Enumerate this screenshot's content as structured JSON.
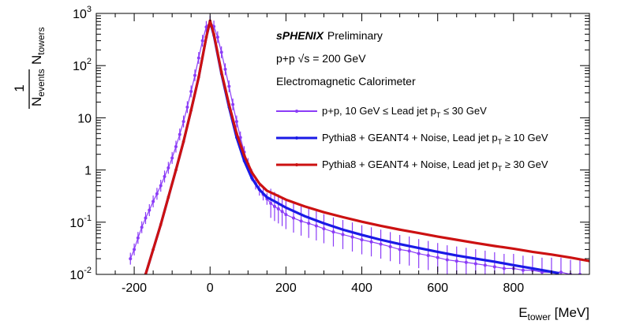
{
  "chart_data": {
    "type": "scatter",
    "xlim": [
      -300,
      1000
    ],
    "ylim": [
      0.01,
      1000
    ],
    "y_scale": "log",
    "grid": false,
    "legend_position": "top-right",
    "xlabel": {
      "main": "E",
      "sub": "tower",
      "unit": " [MeV]"
    },
    "ylabel": {
      "num": "1",
      "den_main": "N",
      "den_sub": "events",
      "main": "N",
      "sub": "towers"
    },
    "x_ticks": [
      "-200",
      "0",
      "200",
      "400",
      "600",
      "800"
    ],
    "x_tick_values": [
      -200,
      0,
      200,
      400,
      600,
      800
    ],
    "y_ticks": [
      {
        "value": 0.01,
        "base": "10",
        "exp": "-2"
      },
      {
        "value": 0.1,
        "base": "10",
        "exp": "-1"
      },
      {
        "value": 1,
        "base": "1",
        "exp": ""
      },
      {
        "value": 10,
        "base": "10",
        "exp": ""
      },
      {
        "value": 100,
        "base": "10",
        "exp": "2"
      },
      {
        "value": 1000,
        "base": "10",
        "exp": "3"
      }
    ],
    "annotations": {
      "experiment": "sPHENIX",
      "status": "Preliminary",
      "collision_prefix": "p+p ",
      "sqrt_symbol": "√s",
      "collision_suffix": " = 200 GeV",
      "detector": "Electromagnetic Calorimeter"
    },
    "series": [
      {
        "name": "p+p, 10 GeV ≤ Lead jet p_T ≤ 30 GeV",
        "legend": {
          "pre": "p+p, 10 GeV ≤ Lead jet p",
          "sub": "T",
          "post": " ≤ 30 GeV"
        },
        "color": "#8b3cf7",
        "x": [
          -210,
          -200,
          -190,
          -180,
          -170,
          -160,
          -150,
          -140,
          -130,
          -120,
          -110,
          -100,
          -90,
          -80,
          -70,
          -60,
          -50,
          -40,
          -30,
          -20,
          -10,
          0,
          10,
          20,
          30,
          40,
          50,
          60,
          70,
          80,
          90,
          100,
          110,
          120,
          130,
          140,
          150,
          160,
          170,
          180,
          190,
          200,
          220,
          240,
          260,
          280,
          300,
          325,
          350,
          375,
          400,
          425,
          450,
          475,
          500,
          525,
          550,
          575,
          600,
          625,
          650,
          675,
          700,
          725,
          750,
          775,
          800,
          825,
          850,
          875,
          900,
          925,
          950,
          975
        ],
        "y": [
          0.02,
          0.03,
          0.05,
          0.08,
          0.12,
          0.17,
          0.25,
          0.35,
          0.5,
          0.75,
          1.1,
          1.7,
          2.8,
          4.8,
          8.5,
          16,
          32,
          65,
          140,
          300,
          550,
          700,
          560,
          350,
          180,
          85,
          40,
          18,
          8.5,
          4.2,
          2.2,
          1.3,
          0.8,
          0.55,
          0.42,
          0.34,
          0.28,
          0.23,
          0.2,
          0.18,
          0.16,
          0.14,
          0.12,
          0.105,
          0.095,
          0.085,
          0.075,
          0.065,
          0.058,
          0.052,
          0.046,
          0.042,
          0.038,
          0.034,
          0.03,
          0.028,
          0.025,
          0.023,
          0.021,
          0.019,
          0.018,
          0.017,
          0.016,
          0.015,
          0.014,
          0.013,
          0.013,
          0.012,
          0.012,
          0.011,
          0.011,
          0.011,
          0.01,
          0.01
        ]
      },
      {
        "name": "Pythia8 + GEANT4 + Noise, Lead jet p_T ≥ 10 GeV",
        "legend": {
          "pre": "Pythia8 + GEANT4 + Noise, Lead jet p",
          "sub": "T",
          "post": " ≥ 10 GeV"
        },
        "color": "#1a1ae6",
        "x": [
          -170,
          -150,
          -130,
          -110,
          -90,
          -70,
          -50,
          -30,
          -10,
          0,
          10,
          30,
          50,
          70,
          90,
          110,
          130,
          150,
          175,
          200,
          250,
          300,
          350,
          400,
          450,
          500,
          550,
          600,
          650,
          700,
          750,
          800,
          850,
          900,
          920
        ],
        "y": [
          0.01,
          0.03,
          0.09,
          0.3,
          1.0,
          3.5,
          14,
          60,
          350,
          700,
          380,
          70,
          16,
          4.2,
          1.5,
          0.7,
          0.42,
          0.3,
          0.24,
          0.19,
          0.13,
          0.095,
          0.072,
          0.057,
          0.046,
          0.038,
          0.032,
          0.027,
          0.023,
          0.02,
          0.0175,
          0.015,
          0.013,
          0.0112,
          0.0105
        ]
      },
      {
        "name": "Pythia8 + GEANT4 + Noise, Lead jet p_T ≥ 30 GeV",
        "legend": {
          "pre": "Pythia8 + GEANT4 + Noise, Lead jet p",
          "sub": "T",
          "post": " ≥ 30 GeV"
        },
        "color": "#cc1111",
        "x": [
          -170,
          -150,
          -130,
          -110,
          -90,
          -70,
          -50,
          -30,
          -10,
          0,
          10,
          30,
          50,
          70,
          90,
          110,
          130,
          150,
          175,
          200,
          250,
          300,
          350,
          400,
          450,
          500,
          550,
          600,
          650,
          700,
          750,
          800,
          850,
          900,
          950,
          1000
        ],
        "y": [
          0.01,
          0.03,
          0.09,
          0.3,
          1.0,
          3.5,
          14,
          60,
          350,
          720,
          400,
          75,
          18,
          5.0,
          1.9,
          0.9,
          0.55,
          0.4,
          0.33,
          0.27,
          0.2,
          0.155,
          0.125,
          0.102,
          0.085,
          0.072,
          0.062,
          0.053,
          0.046,
          0.04,
          0.035,
          0.031,
          0.027,
          0.024,
          0.021,
          0.018
        ]
      }
    ]
  }
}
